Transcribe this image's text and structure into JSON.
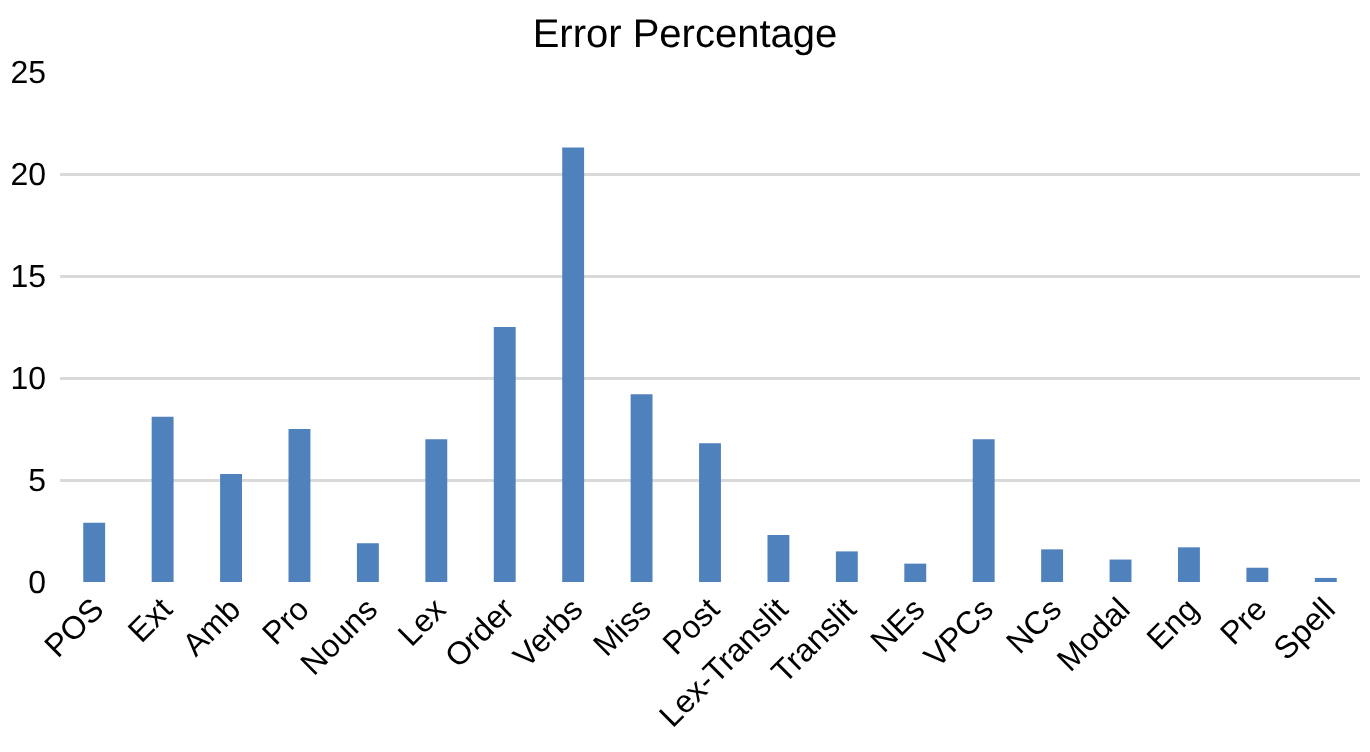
{
  "chart_data": {
    "type": "bar",
    "title": "Error Percentage",
    "categories": [
      "POS",
      "Ext",
      "Amb",
      "Pro",
      "Nouns",
      "Lex",
      "Order",
      "Verbs",
      "Miss",
      "Post",
      "Lex-Translit",
      "Translit",
      "NEs",
      "VPCs",
      "NCs",
      "Modal",
      "Eng",
      "Pre",
      "Spell"
    ],
    "values": [
      2.9,
      8.1,
      5.3,
      7.5,
      1.9,
      7.0,
      12.5,
      21.3,
      9.2,
      6.8,
      2.3,
      1.5,
      0.9,
      7.0,
      1.6,
      1.1,
      1.7,
      0.7,
      0.2
    ],
    "color": "#4f81bd",
    "ylim": [
      0,
      25
    ],
    "yticks": [
      0,
      5,
      10,
      15,
      20,
      25
    ],
    "grid": "y"
  }
}
